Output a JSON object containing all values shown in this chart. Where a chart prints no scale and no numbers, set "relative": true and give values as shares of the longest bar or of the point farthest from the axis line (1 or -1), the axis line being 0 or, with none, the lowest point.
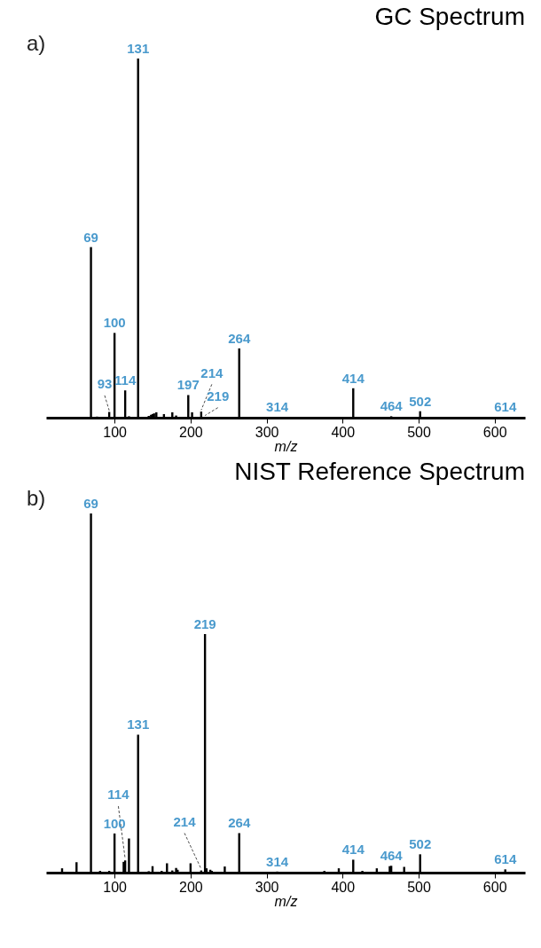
{
  "chart_data": [
    {
      "type": "bar",
      "title": "GC Spectrum",
      "xlabel": "m/z",
      "relative": true,
      "color": "#000000",
      "xlim": [
        10,
        640
      ],
      "xticks": [
        100,
        200,
        300,
        400,
        500,
        600
      ],
      "x": [
        69,
        77,
        93,
        100,
        114,
        119,
        131,
        145,
        148,
        150,
        152,
        155,
        165,
        176,
        181,
        197,
        202,
        214,
        219,
        264,
        314,
        327,
        414,
        464,
        502,
        614
      ],
      "values": [
        0.475,
        0.003,
        0.016,
        0.236,
        0.076,
        0.004,
        1,
        0.005,
        0.008,
        0.01,
        0.012,
        0.015,
        0.01,
        0.015,
        0.006,
        0.063,
        0.015,
        0.017,
        0.002,
        0.193,
        0.002,
        0.002,
        0.082,
        0.004,
        0.018,
        0.002
      ],
      "annotations": [
        "a)",
        {
          "text": "69",
          "x": 69,
          "y": 0.475
        },
        {
          "text": "93",
          "x": 93,
          "y": 0.016
        },
        {
          "text": "100",
          "x": 100,
          "y": 0.236
        },
        {
          "text": "114",
          "x": 114,
          "y": 0.076
        },
        {
          "text": "131",
          "x": 131,
          "y": 1
        },
        {
          "text": "197",
          "x": 197,
          "y": 0.063
        },
        {
          "text": "214",
          "x": 214,
          "y": 0.017
        },
        {
          "text": "219",
          "x": 219,
          "y": 0.002
        },
        {
          "text": "264",
          "x": 264,
          "y": 0.193
        },
        {
          "text": "314",
          "x": 314,
          "y": 0.002
        },
        {
          "text": "414",
          "x": 414,
          "y": 0.082
        },
        {
          "text": "464",
          "x": 464,
          "y": 0.004
        },
        {
          "text": "502",
          "x": 502,
          "y": 0.018
        },
        {
          "text": "614",
          "x": 614,
          "y": 0.002
        }
      ]
    },
    {
      "type": "bar",
      "title": "NIST Reference Spectrum",
      "xlabel": "m/z",
      "relative": true,
      "color": "#000000",
      "xlim": [
        10,
        640
      ],
      "xticks": [
        100,
        200,
        300,
        400,
        500,
        600
      ],
      "x": [
        31,
        50,
        69,
        81,
        93,
        100,
        112,
        114,
        119,
        131,
        145,
        150,
        162,
        169,
        176,
        181,
        183,
        200,
        214,
        219,
        221,
        226,
        228,
        245,
        264,
        281,
        314,
        376,
        395,
        414,
        426,
        445,
        462,
        464,
        481,
        502,
        576,
        614
      ],
      "values": [
        0.012,
        0.029,
        1,
        0.005,
        0.005,
        0.109,
        0.03,
        0.034,
        0.095,
        0.384,
        0.004,
        0.018,
        0.005,
        0.026,
        0.006,
        0.013,
        0.008,
        0.026,
        0.006,
        0.664,
        0.012,
        0.008,
        0.005,
        0.017,
        0.11,
        0.002,
        0.003,
        0.005,
        0.012,
        0.036,
        0.005,
        0.012,
        0.018,
        0.019,
        0.016,
        0.051,
        0.002,
        0.009
      ],
      "annotations": [
        "b)",
        {
          "text": "69",
          "x": 69,
          "y": 1
        },
        {
          "text": "100",
          "x": 100,
          "y": 0.109
        },
        {
          "text": "114",
          "x": 114,
          "y": 0.034
        },
        {
          "text": "131",
          "x": 131,
          "y": 0.384
        },
        {
          "text": "214",
          "x": 214,
          "y": 0.006
        },
        {
          "text": "219",
          "x": 219,
          "y": 0.664
        },
        {
          "text": "264",
          "x": 264,
          "y": 0.11
        },
        {
          "text": "314",
          "x": 314,
          "y": 0.003
        },
        {
          "text": "414",
          "x": 414,
          "y": 0.036
        },
        {
          "text": "464",
          "x": 464,
          "y": 0.019
        },
        {
          "text": "502",
          "x": 502,
          "y": 0.051
        },
        {
          "text": "614",
          "x": 614,
          "y": 0.009
        }
      ]
    }
  ]
}
